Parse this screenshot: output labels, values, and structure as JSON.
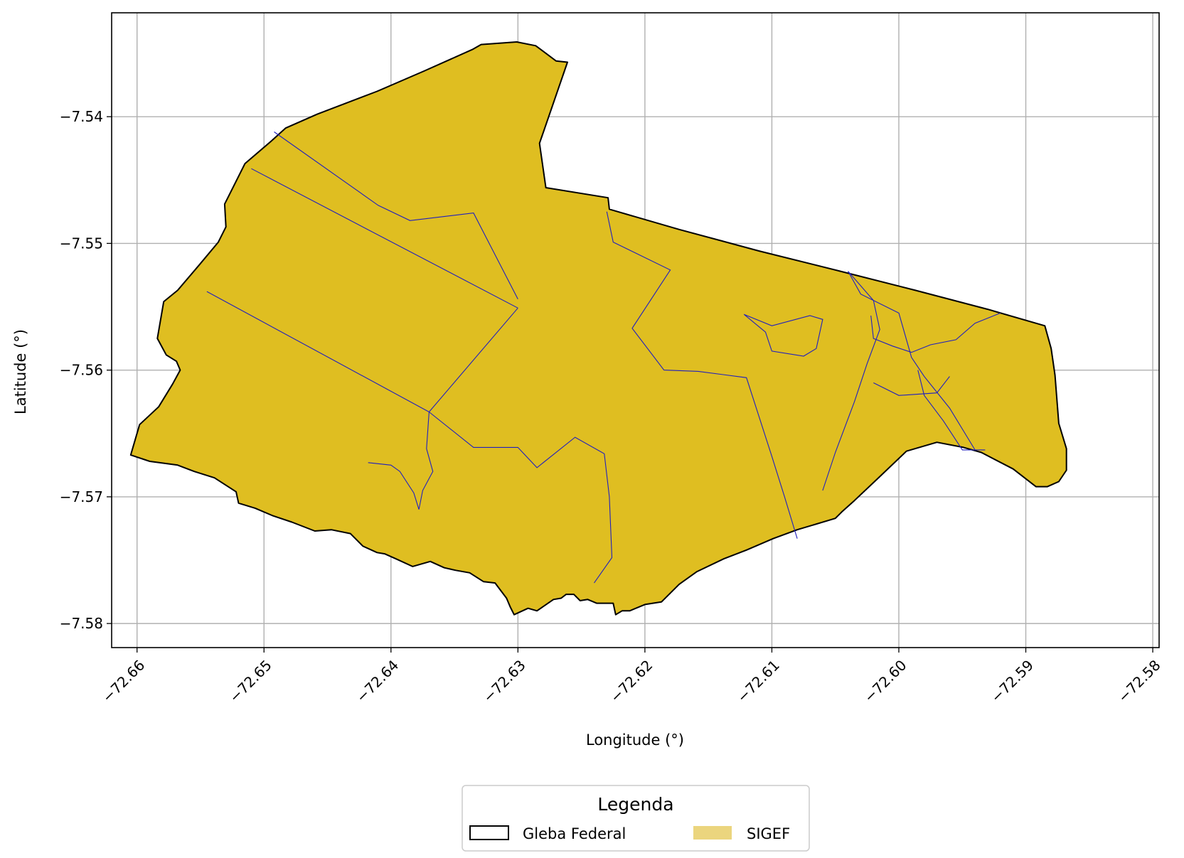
{
  "chart_data": {
    "type": "map",
    "xlabel": "Longitude (°)",
    "ylabel": "Latitude (°)",
    "xlim": [
      -72.662,
      -72.5795
    ],
    "ylim": [
      -7.5819,
      -7.5318
    ],
    "xticks": [
      -72.66,
      -72.65,
      -72.64,
      -72.63,
      -72.62,
      -72.61,
      -72.6,
      -72.59,
      -72.58
    ],
    "xtick_labels": [
      "−72.66",
      "−72.65",
      "−72.64",
      "−72.63",
      "−72.62",
      "−72.61",
      "−72.60",
      "−72.59",
      "−72.58"
    ],
    "yticks": [
      -7.54,
      -7.55,
      -7.56,
      -7.57,
      -7.58
    ],
    "ytick_labels": [
      "−7.54",
      "−7.55",
      "−7.56",
      "−7.57",
      "−7.58"
    ],
    "grid": true,
    "legend": {
      "title": "Legenda",
      "placement": "bottom-center",
      "entries": [
        {
          "label": "Gleba Federal",
          "style": "outline",
          "edge_color": "#000000"
        },
        {
          "label": "SIGEF",
          "style": "fill",
          "fill_color": "#ebd57e"
        }
      ]
    },
    "colors": {
      "gleba_edge": "#000000",
      "sigef_fill": "#dfbe21",
      "sigef_edge": "#1f1fbf",
      "grid": "#b0b0b0"
    },
    "gleba_boundary": [
      [
        -72.6605,
        -7.5667
      ],
      [
        -72.6598,
        -7.5643
      ],
      [
        -72.6583,
        -7.5629
      ],
      [
        -72.6572,
        -7.5611
      ],
      [
        -72.6566,
        -7.56
      ],
      [
        -72.6569,
        -7.5593
      ],
      [
        -72.6577,
        -7.5588
      ],
      [
        -72.6584,
        -7.5575
      ],
      [
        -72.6579,
        -7.5546
      ],
      [
        -72.6568,
        -7.5537
      ],
      [
        -72.6551,
        -7.5517
      ],
      [
        -72.6536,
        -7.5499
      ],
      [
        -72.653,
        -7.5487
      ],
      [
        -72.6531,
        -7.5469
      ],
      [
        -72.6515,
        -7.5437
      ],
      [
        -72.6494,
        -7.5419
      ],
      [
        -72.6483,
        -7.5409
      ],
      [
        -72.6458,
        -7.5398
      ],
      [
        -72.6411,
        -7.538
      ],
      [
        -72.6374,
        -7.5364
      ],
      [
        -72.6336,
        -7.5347
      ],
      [
        -72.6329,
        -7.5343
      ],
      [
        -72.6301,
        -7.5341
      ],
      [
        -72.6286,
        -7.5344
      ],
      [
        -72.627,
        -7.5356
      ],
      [
        -72.6261,
        -7.5357
      ],
      [
        -72.6283,
        -7.5421
      ],
      [
        -72.6278,
        -7.5456
      ],
      [
        -72.6229,
        -7.5464
      ],
      [
        -72.6228,
        -7.5473
      ],
      [
        -72.6173,
        -7.5489
      ],
      [
        -72.611,
        -7.5506
      ],
      [
        -72.6046,
        -7.5522
      ],
      [
        -72.5987,
        -7.5537
      ],
      [
        -72.593,
        -7.5552
      ],
      [
        -72.5885,
        -7.5565
      ],
      [
        -72.588,
        -7.5583
      ],
      [
        -72.5877,
        -7.5604
      ],
      [
        -72.5874,
        -7.5642
      ],
      [
        -72.5868,
        -7.5662
      ],
      [
        -72.5868,
        -7.5679
      ],
      [
        -72.5874,
        -7.5688
      ],
      [
        -72.5883,
        -7.5692
      ],
      [
        -72.5892,
        -7.5692
      ],
      [
        -72.591,
        -7.5678
      ],
      [
        -72.5935,
        -7.5665
      ],
      [
        -72.5949,
        -7.5661
      ],
      [
        -72.597,
        -7.5657
      ],
      [
        -72.5994,
        -7.5664
      ],
      [
        -72.6017,
        -7.5686
      ],
      [
        -72.6035,
        -7.5703
      ],
      [
        -72.6045,
        -7.5712
      ],
      [
        -72.605,
        -7.5717
      ],
      [
        -72.608,
        -7.5726
      ],
      [
        -72.6099,
        -7.5733
      ],
      [
        -72.612,
        -7.5742
      ],
      [
        -72.6138,
        -7.5749
      ],
      [
        -72.6159,
        -7.5759
      ],
      [
        -72.6173,
        -7.5769
      ],
      [
        -72.6187,
        -7.5783
      ],
      [
        -72.62,
        -7.5785
      ],
      [
        -72.6212,
        -7.579
      ],
      [
        -72.6218,
        -7.579
      ],
      [
        -72.6223,
        -7.5793
      ],
      [
        -72.6225,
        -7.5784
      ],
      [
        -72.6238,
        -7.5784
      ],
      [
        -72.6245,
        -7.5781
      ],
      [
        -72.6251,
        -7.5782
      ],
      [
        -72.6256,
        -7.5777
      ],
      [
        -72.6262,
        -7.5777
      ],
      [
        -72.6266,
        -7.578
      ],
      [
        -72.6272,
        -7.5781
      ],
      [
        -72.6285,
        -7.579
      ],
      [
        -72.6292,
        -7.5788
      ],
      [
        -72.6303,
        -7.5793
      ],
      [
        -72.6306,
        -7.5787
      ],
      [
        -72.6309,
        -7.578
      ],
      [
        -72.6318,
        -7.5768
      ],
      [
        -72.6327,
        -7.5767
      ],
      [
        -72.6338,
        -7.576
      ],
      [
        -72.6349,
        -7.5758
      ],
      [
        -72.6358,
        -7.5756
      ],
      [
        -72.6369,
        -7.5751
      ],
      [
        -72.6383,
        -7.5755
      ],
      [
        -72.6396,
        -7.5749
      ],
      [
        -72.6405,
        -7.5745
      ],
      [
        -72.6411,
        -7.5744
      ],
      [
        -72.6422,
        -7.5739
      ],
      [
        -72.6432,
        -7.5729
      ],
      [
        -72.6447,
        -7.5726
      ],
      [
        -72.646,
        -7.5727
      ],
      [
        -72.6478,
        -7.572
      ],
      [
        -72.6493,
        -7.5715
      ],
      [
        -72.6507,
        -7.5709
      ],
      [
        -72.652,
        -7.5705
      ],
      [
        -72.6522,
        -7.5696
      ],
      [
        -72.6539,
        -7.5685
      ],
      [
        -72.6555,
        -7.568
      ],
      [
        -72.6568,
        -7.5675
      ],
      [
        -72.659,
        -7.5672
      ],
      [
        -72.6605,
        -7.5667
      ]
    ],
    "sigef_parcels": [
      [
        [
          -72.6492,
          -7.5412
        ],
        [
          -72.641,
          -7.547
        ],
        [
          -72.6385,
          -7.5482
        ],
        [
          -72.6335,
          -7.5476
        ],
        [
          -72.63,
          -7.5544
        ]
      ],
      [
        [
          -72.651,
          -7.5441
        ],
        [
          -72.63,
          -7.5551
        ]
      ],
      [
        [
          -72.6545,
          -7.5538
        ],
        [
          -72.637,
          -7.5633
        ]
      ],
      [
        [
          -72.63,
          -7.5551
        ],
        [
          -72.637,
          -7.5633
        ],
        [
          -72.6372,
          -7.5662
        ],
        [
          -72.6367,
          -7.568
        ],
        [
          -72.6375,
          -7.5695
        ],
        [
          -72.6378,
          -7.571
        ],
        [
          -72.6382,
          -7.5697
        ],
        [
          -72.6393,
          -7.568
        ],
        [
          -72.64,
          -7.5675
        ],
        [
          -72.6418,
          -7.5673
        ]
      ],
      [
        [
          -72.637,
          -7.5633
        ],
        [
          -72.6335,
          -7.5661
        ],
        [
          -72.63,
          -7.5661
        ],
        [
          -72.6285,
          -7.5677
        ],
        [
          -72.6255,
          -7.5653
        ],
        [
          -72.6232,
          -7.5666
        ],
        [
          -72.6228,
          -7.57
        ],
        [
          -72.6226,
          -7.5748
        ],
        [
          -72.624,
          -7.5768
        ]
      ],
      [
        [
          -72.623,
          -7.5475
        ],
        [
          -72.6225,
          -7.5499
        ],
        [
          -72.618,
          -7.5521
        ],
        [
          -72.621,
          -7.5567
        ],
        [
          -72.6185,
          -7.56
        ],
        [
          -72.6158,
          -7.5601
        ],
        [
          -72.612,
          -7.5606
        ],
        [
          -72.61,
          -7.5668
        ],
        [
          -72.609,
          -7.57
        ],
        [
          -72.608,
          -7.5733
        ]
      ],
      [
        [
          -72.604,
          -7.5522
        ],
        [
          -72.603,
          -7.554
        ],
        [
          -72.6,
          -7.5555
        ],
        [
          -72.599,
          -7.559
        ],
        [
          -72.598,
          -7.5605
        ],
        [
          -72.596,
          -7.563
        ],
        [
          -72.594,
          -7.5663
        ]
      ],
      [
        [
          -72.6122,
          -7.5556
        ],
        [
          -72.61,
          -7.5565
        ],
        [
          -72.607,
          -7.5557
        ],
        [
          -72.606,
          -7.556
        ],
        [
          -72.6065,
          -7.5583
        ],
        [
          -72.6075,
          -7.5589
        ],
        [
          -72.61,
          -7.5585
        ],
        [
          -72.6105,
          -7.557
        ],
        [
          -72.6122,
          -7.5556
        ]
      ],
      [
        [
          -72.6022,
          -7.5557
        ],
        [
          -72.602,
          -7.5575
        ],
        [
          -72.6005,
          -7.5581
        ],
        [
          -72.599,
          -7.5586
        ],
        [
          -72.5975,
          -7.558
        ],
        [
          -72.5955,
          -7.5576
        ],
        [
          -72.594,
          -7.5563
        ],
        [
          -72.592,
          -7.5555
        ]
      ],
      [
        [
          -72.604,
          -7.5522
        ],
        [
          -72.602,
          -7.5545
        ],
        [
          -72.6015,
          -7.5568
        ],
        [
          -72.6025,
          -7.5595
        ],
        [
          -72.6035,
          -7.5625
        ],
        [
          -72.605,
          -7.5665
        ],
        [
          -72.606,
          -7.5695
        ]
      ],
      [
        [
          -72.5985,
          -7.56
        ],
        [
          -72.598,
          -7.562
        ],
        [
          -72.5965,
          -7.564
        ],
        [
          -72.595,
          -7.5663
        ],
        [
          -72.5932,
          -7.5663
        ]
      ],
      [
        [
          -72.602,
          -7.561
        ],
        [
          -72.6,
          -7.562
        ],
        [
          -72.597,
          -7.5618
        ],
        [
          -72.596,
          -7.5605
        ]
      ]
    ]
  }
}
